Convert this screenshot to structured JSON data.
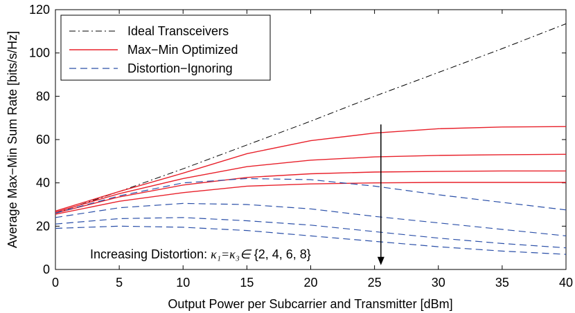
{
  "chart_data": {
    "type": "line",
    "title": "",
    "xlabel": "Output Power per Subcarrier and Transmitter [dBm]",
    "ylabel": "Average Max−Min Sum Rate [bits/s/Hz]",
    "xlim": [
      0,
      40
    ],
    "ylim": [
      0,
      120
    ],
    "xticks": [
      0,
      5,
      10,
      15,
      20,
      25,
      30,
      35,
      40
    ],
    "yticks": [
      0,
      20,
      40,
      60,
      80,
      100,
      120
    ],
    "grid": false,
    "legend_position": "top-left",
    "x": [
      0,
      5,
      10,
      15,
      20,
      25,
      30,
      35,
      40
    ],
    "series": [
      {
        "name": "Ideal Transceivers",
        "style": "dash-dot",
        "color": "#000000",
        "values": [
          26,
          36,
          46.5,
          57.5,
          68.5,
          80,
          91,
          102,
          113.5
        ]
      },
      {
        "name": "Max−Min Optimized",
        "style": "solid",
        "color": "#e8202a",
        "curves": [
          [
            27,
            36,
            44.5,
            53.5,
            59.5,
            63,
            65,
            65.8,
            66
          ],
          [
            26.5,
            35,
            42,
            47.5,
            50.5,
            52,
            52.7,
            53,
            53.2
          ],
          [
            26,
            33.5,
            39,
            42.5,
            44.2,
            45,
            45.3,
            45.5,
            45.5
          ],
          [
            25.5,
            31.5,
            35.5,
            38.5,
            39.5,
            40,
            40.2,
            40.2,
            40.2
          ]
        ]
      },
      {
        "name": "Distortion−Ignoring",
        "style": "dashed",
        "color": "#2a4fa8",
        "curves": [
          [
            26,
            34,
            40,
            42,
            41.5,
            38.5,
            34.5,
            31,
            27.5
          ],
          [
            24,
            28.5,
            30.5,
            30,
            28,
            24.5,
            21.5,
            18.5,
            15.5
          ],
          [
            21,
            23.5,
            24,
            22.5,
            20.5,
            17.5,
            14.5,
            12,
            10
          ],
          [
            19,
            20,
            19.5,
            18,
            15.5,
            13,
            10.5,
            8.5,
            7
          ]
        ]
      }
    ],
    "annotation": {
      "text_prefix": "Increasing Distortion: ",
      "text_math": "κ₁=κ₃∈",
      "text_set": "{2, 4, 6, 8}",
      "arrow_x": 25.5,
      "arrow_from_y": 67,
      "arrow_to_y": 2
    }
  }
}
